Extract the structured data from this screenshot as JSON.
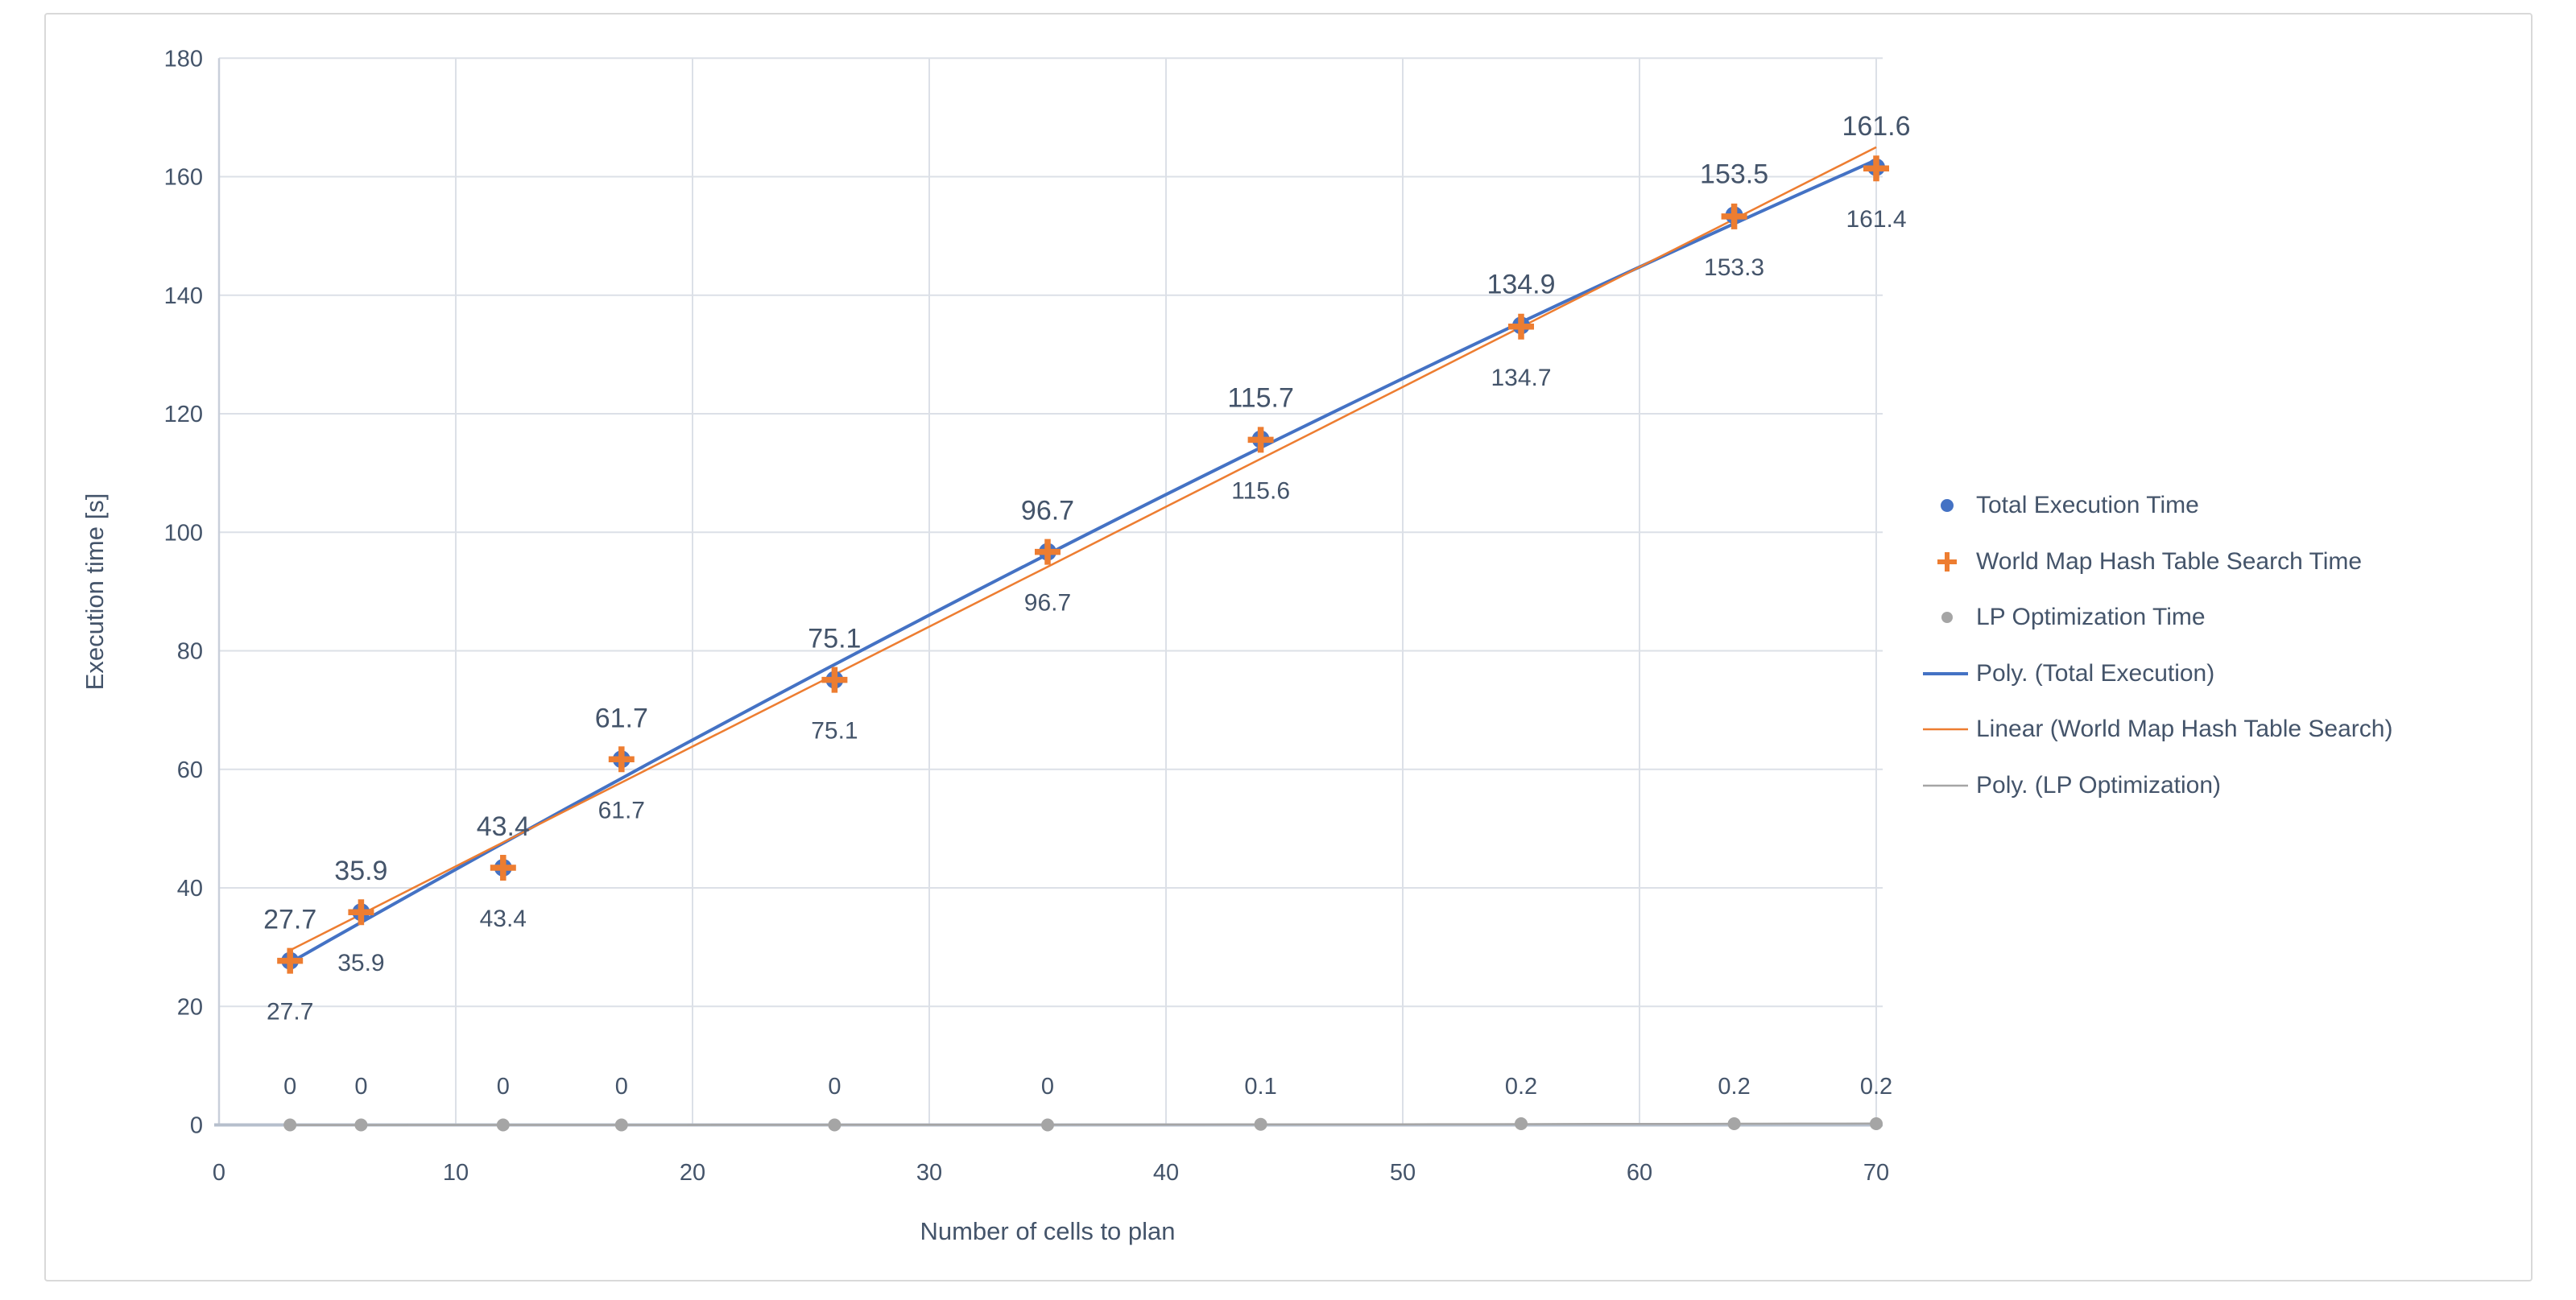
{
  "chart_data": {
    "type": "scatter",
    "xlabel": "Number of cells to plan",
    "ylabel": "Execution time [s]",
    "xlim": [
      0,
      70
    ],
    "ylim": [
      0,
      180
    ],
    "grid": true,
    "legend_position": "right",
    "x_ticks": [
      0,
      10,
      20,
      30,
      40,
      50,
      60,
      70
    ],
    "x_tick_labels": [
      "0",
      "10",
      "20",
      "30",
      "40",
      "50",
      "60",
      "70"
    ],
    "y_ticks": [
      0,
      20,
      40,
      60,
      80,
      100,
      120,
      140,
      160,
      180
    ],
    "y_tick_labels": [
      "0",
      "20",
      "40",
      "60",
      "80",
      "100",
      "120",
      "140",
      "160",
      "180"
    ],
    "x": [
      3,
      6,
      12,
      17,
      26,
      35,
      44,
      55,
      64,
      70
    ],
    "series": [
      {
        "name": "Total Execution Time",
        "marker": "circle",
        "color": "#4472C4",
        "values": [
          27.7,
          35.9,
          43.4,
          61.7,
          75.1,
          96.7,
          115.7,
          134.9,
          153.5,
          161.6
        ],
        "labels": [
          "27.7",
          "35.9",
          "43.4",
          "61.7",
          "75.1",
          "96.7",
          "115.7",
          "134.9",
          "153.5",
          "161.6"
        ],
        "label_position": "above"
      },
      {
        "name": "World Map Hash Table Search Time",
        "marker": "plus",
        "color": "#ED7D31",
        "values": [
          27.7,
          35.9,
          43.4,
          61.7,
          75.1,
          96.7,
          115.6,
          134.7,
          153.3,
          161.4
        ],
        "labels": [
          "27.7",
          "35.9",
          "43.4",
          "61.7",
          "75.1",
          "96.7",
          "115.6",
          "134.7",
          "153.3",
          "161.4"
        ],
        "label_position": "below"
      },
      {
        "name": "LP Optimization Time",
        "marker": "circle",
        "color": "#A5A5A5",
        "values": [
          0,
          0,
          0,
          0,
          0,
          0,
          0.1,
          0.2,
          0.2,
          0.2
        ],
        "labels": [
          "0",
          "0",
          "0",
          "0",
          "0",
          "0",
          "0.1",
          "0.2",
          "0.2",
          "0.2"
        ],
        "label_position": "above"
      }
    ],
    "trendlines": [
      {
        "name": "Poly. (Total Execution)",
        "color": "#4472C4",
        "fit": "poly2",
        "series_index": 0,
        "stroke_width": 4
      },
      {
        "name": "Linear (World Map Hash Table Search)",
        "color": "#ED7D31",
        "fit": "linear",
        "series_index": 1,
        "stroke_width": 2.5
      },
      {
        "name": "Poly. (LP Optimization)",
        "color": "#A5A5A5",
        "fit": "poly2",
        "series_index": 2,
        "stroke_width": 2.5
      }
    ]
  },
  "legend": {
    "items": [
      {
        "label": "Total Execution Time",
        "swatch": "circle",
        "color": "#4472C4"
      },
      {
        "label": "World Map Hash Table Search Time",
        "swatch": "plus",
        "color": "#ED7D31"
      },
      {
        "label": "LP Optimization Time",
        "swatch": "circle-small",
        "color": "#A5A5A5"
      },
      {
        "label": "Poly. (Total Execution)",
        "swatch": "line-thick",
        "color": "#4472C4"
      },
      {
        "label": "Linear (World Map Hash Table Search)",
        "swatch": "line",
        "color": "#ED7D31"
      },
      {
        "label": "Poly. (LP Optimization)",
        "swatch": "line",
        "color": "#A5A5A5"
      }
    ]
  },
  "colors": {
    "text": "#44546A",
    "gridline": "#DCE0E7",
    "axis_line": "#B6BFCC",
    "chart_border": "#D9D9D9",
    "series_blue": "#4472C4",
    "series_orange": "#ED7D31",
    "series_gray": "#A5A5A5"
  }
}
